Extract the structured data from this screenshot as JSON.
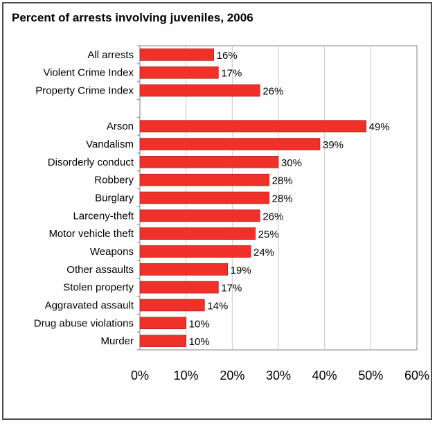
{
  "chart_data": {
    "type": "bar",
    "orientation": "horizontal",
    "title": "Percent of arrests involving juveniles, 2006",
    "xlabel": "",
    "ylabel": "",
    "xlim": [
      0,
      60
    ],
    "xticks": [
      "0%",
      "10%",
      "20%",
      "30%",
      "40%",
      "50%",
      "60%"
    ],
    "grid": true,
    "groups": [
      {
        "categories": [
          "All arrests",
          "Violent Crime Index",
          "Property Crime Index"
        ],
        "values": [
          16,
          17,
          26
        ],
        "labels": [
          "16%",
          "17%",
          "26%"
        ]
      },
      {
        "categories": [
          "Arson",
          "Vandalism",
          "Disorderly conduct",
          "Robbery",
          "Burglary",
          "Larceny-theft",
          "Motor vehicle theft",
          "Weapons",
          "Other assaults",
          "Stolen property",
          "Aggravated assault",
          "Drug abuse violations",
          "Murder"
        ],
        "values": [
          49,
          39,
          30,
          28,
          28,
          26,
          25,
          24,
          19,
          17,
          14,
          10,
          10
        ],
        "labels": [
          "49%",
          "39%",
          "30%",
          "28%",
          "28%",
          "26%",
          "25%",
          "24%",
          "19%",
          "17%",
          "14%",
          "10%",
          "10%"
        ]
      }
    ],
    "colors": {
      "bar": "#f0312a",
      "bar_edge": "#a01010",
      "grid": "#c8c8c8",
      "axis": "#808080",
      "frame": "#4d4d4d"
    }
  }
}
